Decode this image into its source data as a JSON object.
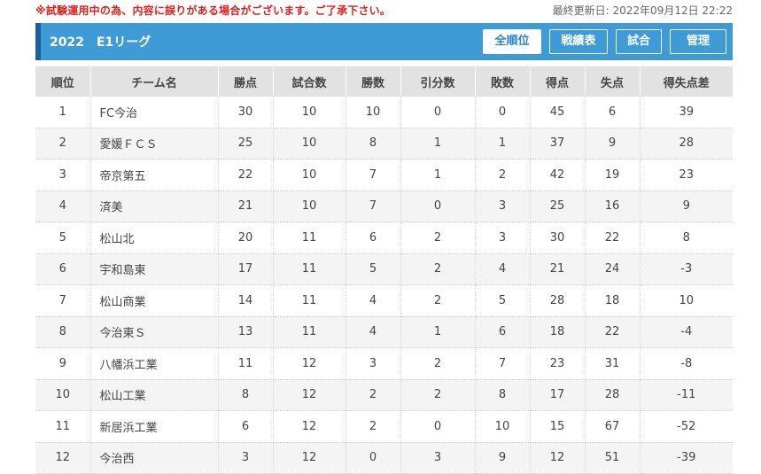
{
  "notice": "※試験運用中の為、内容に誤りがある場合がございます。ご了承下さい。",
  "last_updated": "最終更新日: 2022年09月12日 22:22",
  "header": {
    "title": "2022　E1リーグ",
    "buttons": [
      {
        "label": "全順位",
        "active": true
      },
      {
        "label": "戦績表",
        "active": false
      },
      {
        "label": "試合",
        "active": false
      },
      {
        "label": "管理",
        "active": false
      }
    ]
  },
  "columns": [
    "順位",
    "チーム名",
    "勝点",
    "試合数",
    "勝数",
    "引分数",
    "敗数",
    "得点",
    "失点",
    "得失点差"
  ],
  "rows": [
    [
      "1",
      "FC今治",
      "30",
      "10",
      "10",
      "0",
      "0",
      "45",
      "6",
      "39"
    ],
    [
      "2",
      "愛媛ＦＣＳ",
      "25",
      "10",
      "8",
      "1",
      "1",
      "37",
      "9",
      "28"
    ],
    [
      "3",
      "帝京第五",
      "22",
      "10",
      "7",
      "1",
      "2",
      "42",
      "19",
      "23"
    ],
    [
      "4",
      "済美",
      "21",
      "10",
      "7",
      "0",
      "3",
      "25",
      "16",
      "9"
    ],
    [
      "5",
      "松山北",
      "20",
      "11",
      "6",
      "2",
      "3",
      "30",
      "22",
      "8"
    ],
    [
      "6",
      "宇和島東",
      "17",
      "11",
      "5",
      "2",
      "4",
      "21",
      "24",
      "-3"
    ],
    [
      "7",
      "松山商業",
      "14",
      "11",
      "4",
      "2",
      "5",
      "28",
      "18",
      "10"
    ],
    [
      "8",
      "今治東Ｓ",
      "13",
      "11",
      "4",
      "1",
      "6",
      "18",
      "22",
      "-4"
    ],
    [
      "9",
      "八幡浜工業",
      "11",
      "12",
      "3",
      "2",
      "7",
      "23",
      "31",
      "-8"
    ],
    [
      "10",
      "松山工業",
      "8",
      "12",
      "2",
      "2",
      "8",
      "17",
      "28",
      "-11"
    ],
    [
      "11",
      "新居浜工業",
      "6",
      "12",
      "2",
      "0",
      "10",
      "15",
      "67",
      "-52"
    ],
    [
      "12",
      "今治西",
      "3",
      "12",
      "0",
      "3",
      "9",
      "12",
      "51",
      "-39"
    ]
  ]
}
